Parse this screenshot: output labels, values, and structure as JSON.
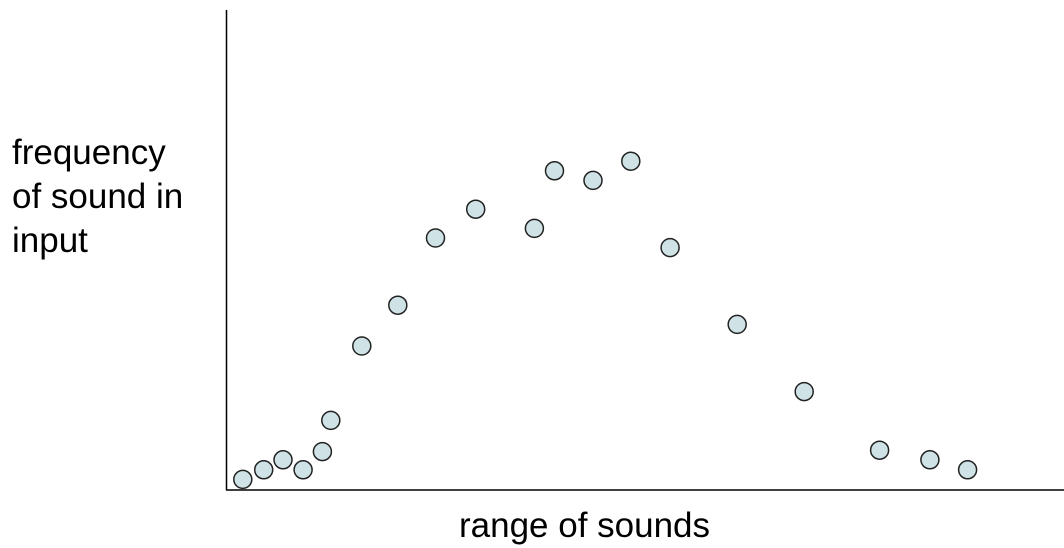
{
  "chart_data": {
    "type": "scatter",
    "title": "",
    "ylabel_lines": [
      "frequency",
      "of sound in",
      "input"
    ],
    "xlabel": "range of sounds",
    "xlim": [
      0,
      100
    ],
    "ylim": [
      0,
      100
    ],
    "grid": false,
    "axis_ticks": false,
    "marker_fill": "#cfe3e6",
    "marker_stroke": "#222222",
    "axis_color": "#000000",
    "points": [
      {
        "x": 2.0,
        "y": 2.2
      },
      {
        "x": 4.5,
        "y": 4.2
      },
      {
        "x": 6.8,
        "y": 6.3
      },
      {
        "x": 9.2,
        "y": 4.2
      },
      {
        "x": 11.5,
        "y": 8.0
      },
      {
        "x": 12.5,
        "y": 14.5
      },
      {
        "x": 16.2,
        "y": 30.0
      },
      {
        "x": 20.5,
        "y": 38.5
      },
      {
        "x": 25.0,
        "y": 52.5
      },
      {
        "x": 29.8,
        "y": 58.5
      },
      {
        "x": 36.8,
        "y": 54.5
      },
      {
        "x": 39.2,
        "y": 66.5
      },
      {
        "x": 43.8,
        "y": 64.5
      },
      {
        "x": 48.3,
        "y": 68.5
      },
      {
        "x": 53.0,
        "y": 50.5
      },
      {
        "x": 61.0,
        "y": 34.5
      },
      {
        "x": 69.0,
        "y": 20.5
      },
      {
        "x": 78.0,
        "y": 8.3
      },
      {
        "x": 84.0,
        "y": 6.3
      },
      {
        "x": 88.5,
        "y": 4.2
      }
    ]
  }
}
